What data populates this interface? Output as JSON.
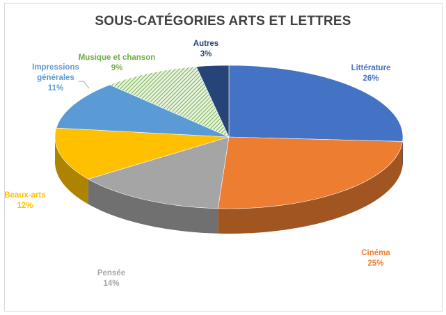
{
  "chart_data": {
    "type": "pie",
    "title": "SOUS-CATÉGORIES ARTS ET LETTRES",
    "slices": [
      {
        "label": "Littérature",
        "value": 26,
        "display": "26%",
        "color": "#4472c4",
        "label_color": "#4472c4"
      },
      {
        "label": "Cinéma",
        "value": 25,
        "display": "25%",
        "color": "#ed7d31",
        "label_color": "#ed7d31"
      },
      {
        "label": "Pensée",
        "value": 14,
        "display": "14%",
        "color": "#a5a5a5",
        "label_color": "#a5a5a5"
      },
      {
        "label": "Beaux-arts",
        "value": 12,
        "display": "12%",
        "color": "#ffc000",
        "label_color": "#ffc000"
      },
      {
        "label": "Impressions générales",
        "value": 11,
        "display": "11%",
        "color": "#5b9bd5",
        "label_color": "#5b9bd5"
      },
      {
        "label": "Musique et chanson",
        "value": 9,
        "display": "9%",
        "color": "#70ad47",
        "label_color": "#70ad47",
        "pattern": "hatched"
      },
      {
        "label": "Autres",
        "value": 3,
        "display": "3%",
        "color": "#264478",
        "label_color": "#264478"
      }
    ],
    "legend": "none",
    "style": "3d"
  }
}
